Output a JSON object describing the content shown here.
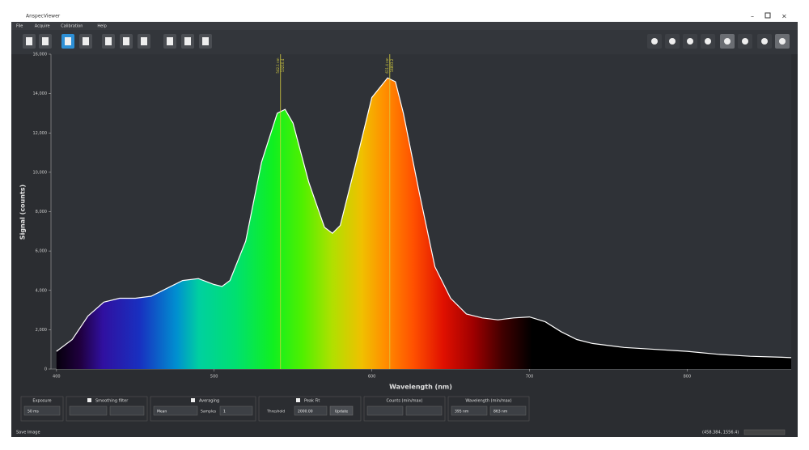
{
  "window": {
    "title": "AnspecViewer",
    "menu": [
      "File",
      "Acquire",
      "Calibration",
      "Help"
    ]
  },
  "chart_data": {
    "type": "area",
    "xlabel": "Wavelength (nm)",
    "ylabel": "Signal (counts)",
    "x": [
      400,
      410,
      420,
      430,
      440,
      450,
      460,
      470,
      480,
      490,
      500,
      505,
      510,
      520,
      530,
      540,
      545,
      550,
      560,
      570,
      575,
      580,
      590,
      600,
      610,
      615,
      620,
      630,
      640,
      650,
      660,
      670,
      680,
      690,
      700,
      710,
      720,
      730,
      740,
      760,
      780,
      800,
      820,
      840,
      860,
      866
    ],
    "values": [
      900,
      1500,
      2700,
      3400,
      3600,
      3600,
      3700,
      4100,
      4500,
      4600,
      4300,
      4200,
      4500,
      6500,
      10500,
      13000,
      13200,
      12500,
      9500,
      7200,
      6900,
      7300,
      10500,
      13800,
      14800,
      14600,
      13000,
      9000,
      5200,
      3600,
      2800,
      2600,
      2500,
      2600,
      2650,
      2400,
      1900,
      1500,
      1300,
      1100,
      1000,
      900,
      750,
      650,
      600,
      580
    ],
    "color": "#ffffff",
    "xlim": [
      396.5,
      866
    ],
    "ylim": [
      0,
      16000
    ],
    "xticks": [
      400,
      500,
      600,
      700,
      800
    ],
    "yticks": [
      0,
      {
        "value": 2000,
        "label": "2,000"
      },
      {
        "value": 4000,
        "label": "4,000"
      },
      {
        "value": 6000,
        "label": "6,000"
      },
      {
        "value": 8000,
        "label": "8,000"
      },
      {
        "value": 10000,
        "label": "10,000"
      },
      {
        "value": 12000,
        "label": "12,000"
      },
      {
        "value": 14000,
        "label": "14,000"
      },
      {
        "value": 16000,
        "label": "16,000"
      }
    ],
    "peaks": [
      {
        "x": 542.1,
        "x_label": "542.1 nm",
        "y": 13210.4
      },
      {
        "x": 611.4,
        "x_label": "611.4 nm",
        "y": 14803.2
      }
    ],
    "peak_color": "#d8d040"
  },
  "controls": {
    "exposure": {
      "label": "Exposure",
      "value": "50 ms"
    },
    "smoothing": {
      "label": "Smoothing filter"
    },
    "averaging": {
      "label": "Averaging",
      "mode": "Mean",
      "samples_label": "Samples",
      "samples": "1"
    },
    "peakfit": {
      "label": "Peak Fit",
      "threshold_label": "Threshold",
      "threshold": "2000.00",
      "button": "Update"
    },
    "counts": {
      "label": "Counts (min/max)"
    },
    "wavelength": {
      "label": "Wavelength (min/max)",
      "min": "395 nm",
      "max": "863 nm"
    }
  },
  "status": {
    "left": "Save Image",
    "right": "(458.384, 1556.4)"
  }
}
